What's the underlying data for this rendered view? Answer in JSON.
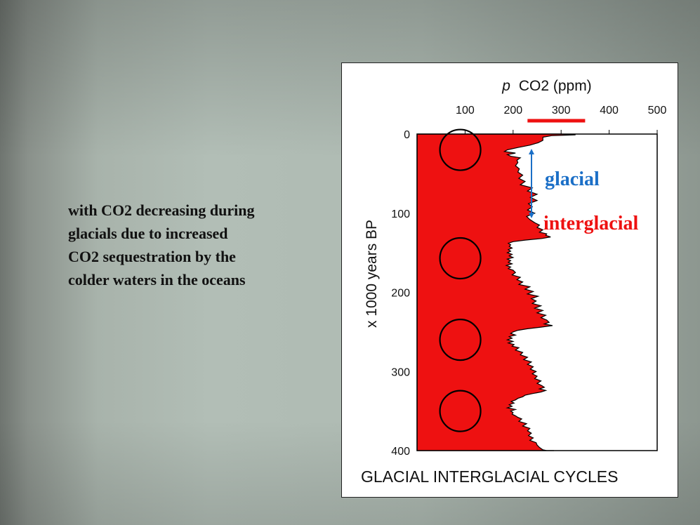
{
  "slide_text": {
    "lines": [
      "with CO2 decreasing during",
      "glacials due to increased",
      "CO2 sequestration by the",
      "colder waters in the oceans"
    ]
  },
  "chart_data": {
    "type": "area",
    "title": "GLACIAL INTERGLACIAL CYCLES",
    "xlabel_italic": "p",
    "xlabel": "CO2 (ppm)",
    "ylabel": "x 1000 years BP",
    "xlim": [
      0,
      500
    ],
    "ylim": [
      0,
      400
    ],
    "x_ticks": [
      100,
      200,
      300,
      400,
      500
    ],
    "y_ticks": [
      0,
      100,
      200,
      300,
      400
    ],
    "x_axis_position": "top",
    "y_axis_inverted": true,
    "grid": false,
    "fill_color": "#ee1111",
    "series": [
      {
        "age_kyr": [
          0,
          1,
          2,
          4,
          8,
          11,
          14,
          17,
          20,
          22,
          24,
          26,
          28,
          30,
          33,
          36,
          40,
          44,
          48,
          52,
          56,
          60,
          64,
          68,
          72,
          76,
          80,
          84,
          88,
          92,
          96,
          100,
          104,
          108,
          112,
          115,
          118,
          121,
          124,
          126,
          128,
          130,
          132,
          134,
          136,
          138,
          140,
          142,
          144,
          146,
          148,
          150,
          152,
          154,
          156,
          158,
          160,
          162,
          164,
          166,
          168,
          170,
          172,
          175,
          178,
          181,
          184,
          187,
          190,
          193,
          196,
          199,
          202,
          205,
          208,
          211,
          214,
          217,
          220,
          223,
          226,
          229,
          232,
          235,
          238,
          240,
          242,
          244,
          246,
          248,
          250,
          252,
          254,
          256,
          258,
          260,
          262,
          264,
          266,
          268,
          270,
          273,
          276,
          279,
          282,
          285,
          288,
          291,
          294,
          297,
          300,
          303,
          306,
          309,
          312,
          315,
          318,
          320,
          322,
          324,
          326,
          328,
          330,
          332,
          334,
          336,
          338,
          340,
          342,
          344,
          346,
          348,
          350,
          352,
          354,
          356,
          358,
          360,
          363,
          366,
          369,
          372,
          375,
          378,
          381,
          384,
          387,
          390,
          393,
          396,
          399,
          402,
          405,
          408,
          411,
          414,
          417,
          420
        ],
        "co2_ppm": [
          300,
          330,
          280,
          262,
          262,
          252,
          235,
          210,
          188,
          182,
          205,
          188,
          195,
          215,
          208,
          210,
          205,
          213,
          210,
          220,
          212,
          225,
          215,
          240,
          230,
          250,
          236,
          250,
          232,
          240,
          230,
          245,
          228,
          235,
          245,
          255,
          250,
          262,
          255,
          270,
          268,
          278,
          260,
          225,
          200,
          190,
          195,
          192,
          198,
          190,
          195,
          188,
          198,
          192,
          200,
          188,
          195,
          190,
          198,
          186,
          195,
          190,
          200,
          205,
          198,
          215,
          208,
          220,
          212,
          235,
          225,
          242,
          230,
          252,
          238,
          248,
          240,
          258,
          245,
          262,
          250,
          268,
          258,
          270,
          275,
          265,
          282,
          258,
          230,
          210,
          200,
          195,
          205,
          192,
          198,
          188,
          200,
          190,
          202,
          198,
          212,
          205,
          220,
          215,
          230,
          222,
          238,
          230,
          242,
          236,
          248,
          240,
          250,
          245,
          258,
          250,
          260,
          265,
          255,
          268,
          258,
          240,
          225,
          220,
          210,
          205,
          196,
          202,
          192,
          198,
          188,
          205,
          195,
          200,
          198,
          205,
          210,
          218,
          212,
          228,
          220,
          235,
          230,
          238,
          232,
          242,
          235,
          248,
          250,
          255,
          262,
          270,
          280,
          285,
          270,
          275,
          285,
          280
        ]
      }
    ],
    "circled_minima_kyr": [
      20,
      157,
      260,
      350
    ],
    "present_day_range_ppm": [
      230,
      350
    ],
    "annotations": [
      {
        "text": "glacial",
        "color": "#1b6fc7"
      },
      {
        "text": "interglacial",
        "color": "#ee1111"
      }
    ]
  }
}
